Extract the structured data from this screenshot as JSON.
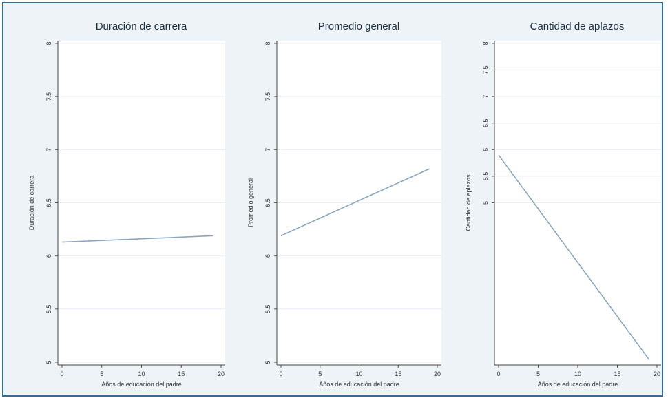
{
  "chart_data": [
    {
      "type": "line",
      "title": "Duración de carrera",
      "xlabel": "Años de educación del padre",
      "ylabel": "Duración de carrera",
      "xlim": [
        0,
        20
      ],
      "ylim": [
        5,
        8
      ],
      "xticks": [
        "0",
        "5",
        "10",
        "15",
        "20"
      ],
      "yticks": [
        "5",
        "5.5",
        "6",
        "6.5",
        "7",
        "7.5",
        "8"
      ],
      "grid": true,
      "series": [
        {
          "color": "#8ca6bf",
          "x": [
            0,
            19
          ],
          "y": [
            6.13,
            6.19
          ]
        }
      ]
    },
    {
      "type": "line",
      "title": "Promedio general",
      "xlabel": "Años de educación del padre",
      "ylabel": "Promedio general",
      "xlim": [
        0,
        20
      ],
      "ylim": [
        5,
        8
      ],
      "xticks": [
        "0",
        "5",
        "10",
        "15",
        "20"
      ],
      "yticks": [
        "5",
        "5.5",
        "6",
        "6.5",
        "7",
        "7.5",
        "8"
      ],
      "grid": true,
      "series": [
        {
          "color": "#8ca6bf",
          "x": [
            0,
            19
          ],
          "y": [
            6.19,
            6.82
          ]
        }
      ]
    },
    {
      "type": "line",
      "title": "Cantidad de aplazos",
      "xlabel": "Años de educación del padre",
      "ylabel": "Cantidad de aplazos",
      "xlim": [
        0,
        20
      ],
      "ylim": [
        2,
        8
      ],
      "xticks": [
        "0",
        "5",
        "10",
        "15",
        "20"
      ],
      "yticks": [
        "5",
        "5.5",
        "6",
        "6.5",
        "7",
        "7.5",
        "8"
      ],
      "grid": true,
      "series": [
        {
          "color": "#8ca6bf",
          "x": [
            0,
            19
          ],
          "y": [
            5.9,
            2.05
          ]
        }
      ]
    }
  ]
}
